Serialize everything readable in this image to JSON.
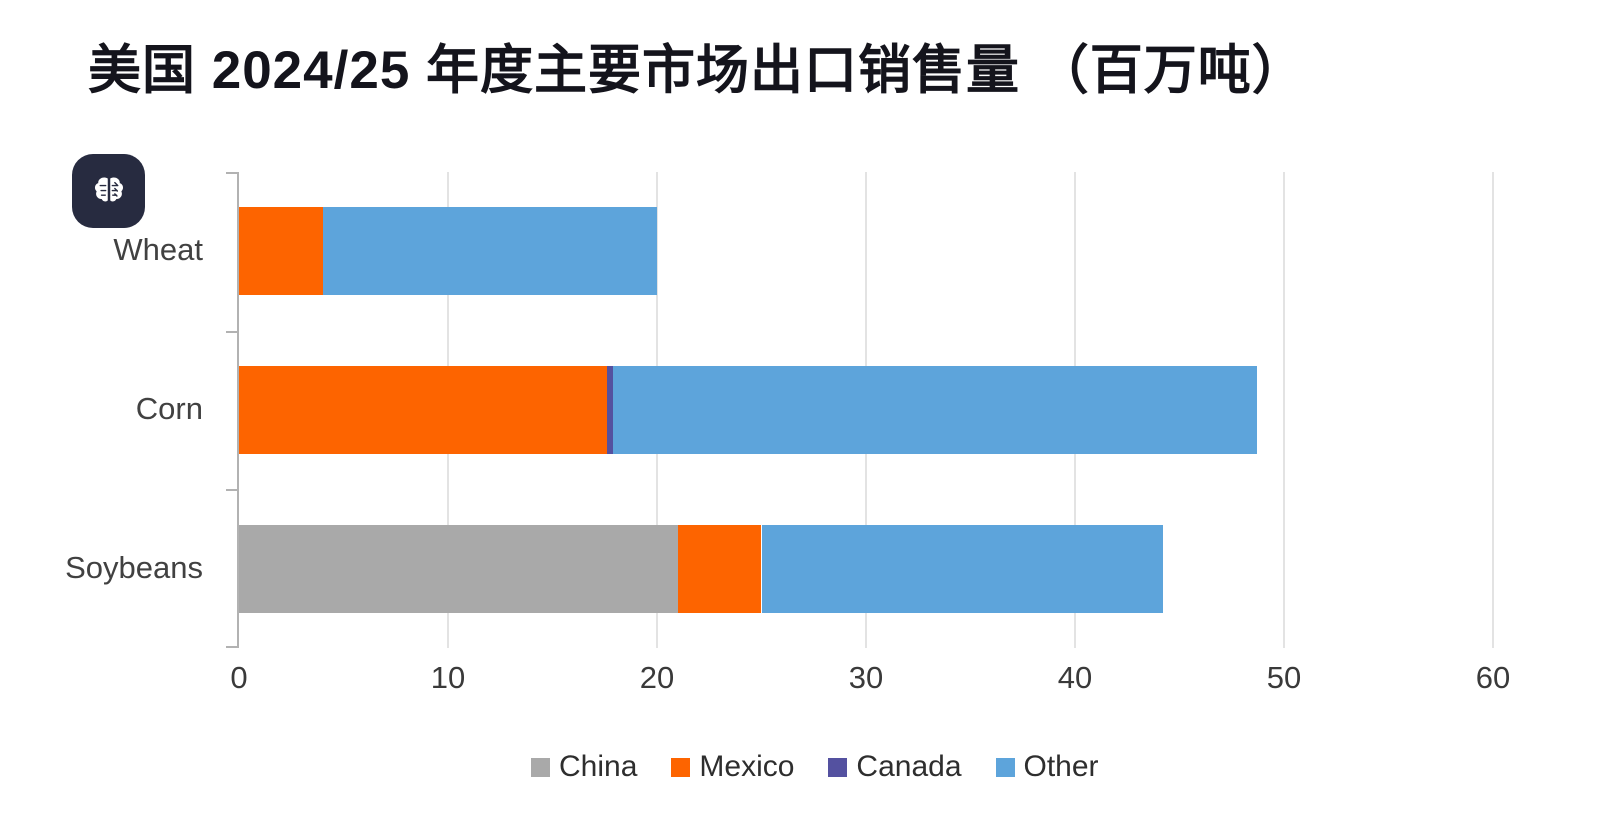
{
  "title": "美国 2024/25 年度主要市场出口销售量 （百万吨）",
  "badge": {
    "icon": "brain-icon"
  },
  "chart_data": {
    "type": "bar",
    "orientation": "horizontal",
    "stacked": true,
    "title": "美国 2024/25 年度主要市场出口销售量 （百万吨）",
    "categories": [
      "Wheat",
      "Corn",
      "Soybeans"
    ],
    "series": [
      {
        "name": "China",
        "color": "#a9a9a9",
        "values": [
          0,
          0,
          21.0
        ]
      },
      {
        "name": "Mexico",
        "color": "#fd6400",
        "values": [
          4.0,
          17.6,
          4.0
        ]
      },
      {
        "name": "Canada",
        "color": "#5451a0",
        "values": [
          0,
          0.3,
          0
        ]
      },
      {
        "name": "Other",
        "color": "#5da4db",
        "values": [
          16.0,
          30.8,
          19.2
        ]
      }
    ],
    "totals": [
      20.0,
      48.7,
      44.2
    ],
    "xlabel": "",
    "ylabel": "",
    "xlim": [
      0,
      60
    ],
    "xticks": [
      0,
      10,
      20,
      30,
      40,
      50,
      60
    ],
    "grid": true,
    "legend_position": "bottom",
    "axis_color": "#b2b2b2",
    "grid_color": "#e3e3e3"
  }
}
